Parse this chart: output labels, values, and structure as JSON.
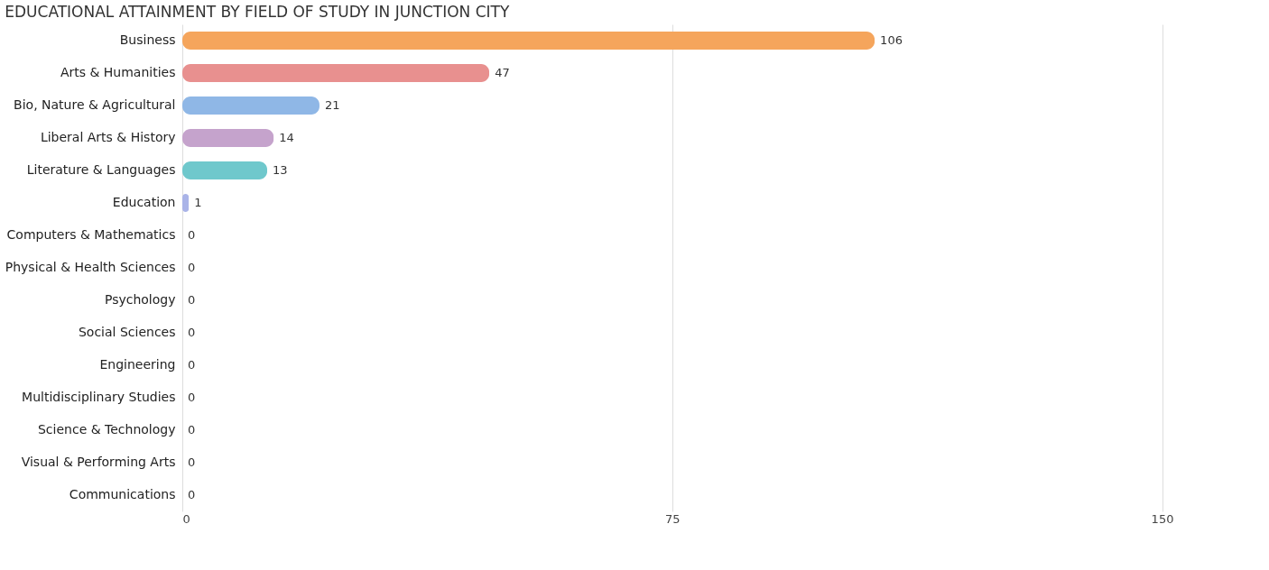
{
  "chart_data": {
    "type": "bar",
    "orientation": "horizontal",
    "title": "EDUCATIONAL ATTAINMENT BY FIELD OF STUDY IN JUNCTION CITY",
    "categories": [
      "Business",
      "Arts & Humanities",
      "Bio, Nature & Agricultural",
      "Liberal Arts & History",
      "Literature & Languages",
      "Education",
      "Computers & Mathematics",
      "Physical & Health Sciences",
      "Psychology",
      "Social Sciences",
      "Engineering",
      "Multidisciplinary Studies",
      "Science & Technology",
      "Visual & Performing Arts",
      "Communications"
    ],
    "values": [
      106,
      47,
      21,
      14,
      13,
      1,
      0,
      0,
      0,
      0,
      0,
      0,
      0,
      0,
      0
    ],
    "colors": [
      "#f5a55c",
      "#e8908f",
      "#8fb7e6",
      "#c5a3cc",
      "#6fc8cc",
      "#aab4e8",
      "#f59cbc",
      "#f8c49a",
      "#f0aaa8",
      "#a7c5ec",
      "#c9a8d4",
      "#72cdd0",
      "#b0b8ea",
      "#f5a0c0",
      "#fbc99b"
    ],
    "xlim": [
      0,
      152
    ],
    "xticks": [
      0,
      75,
      150
    ],
    "grid": "x",
    "data_labels": true
  }
}
